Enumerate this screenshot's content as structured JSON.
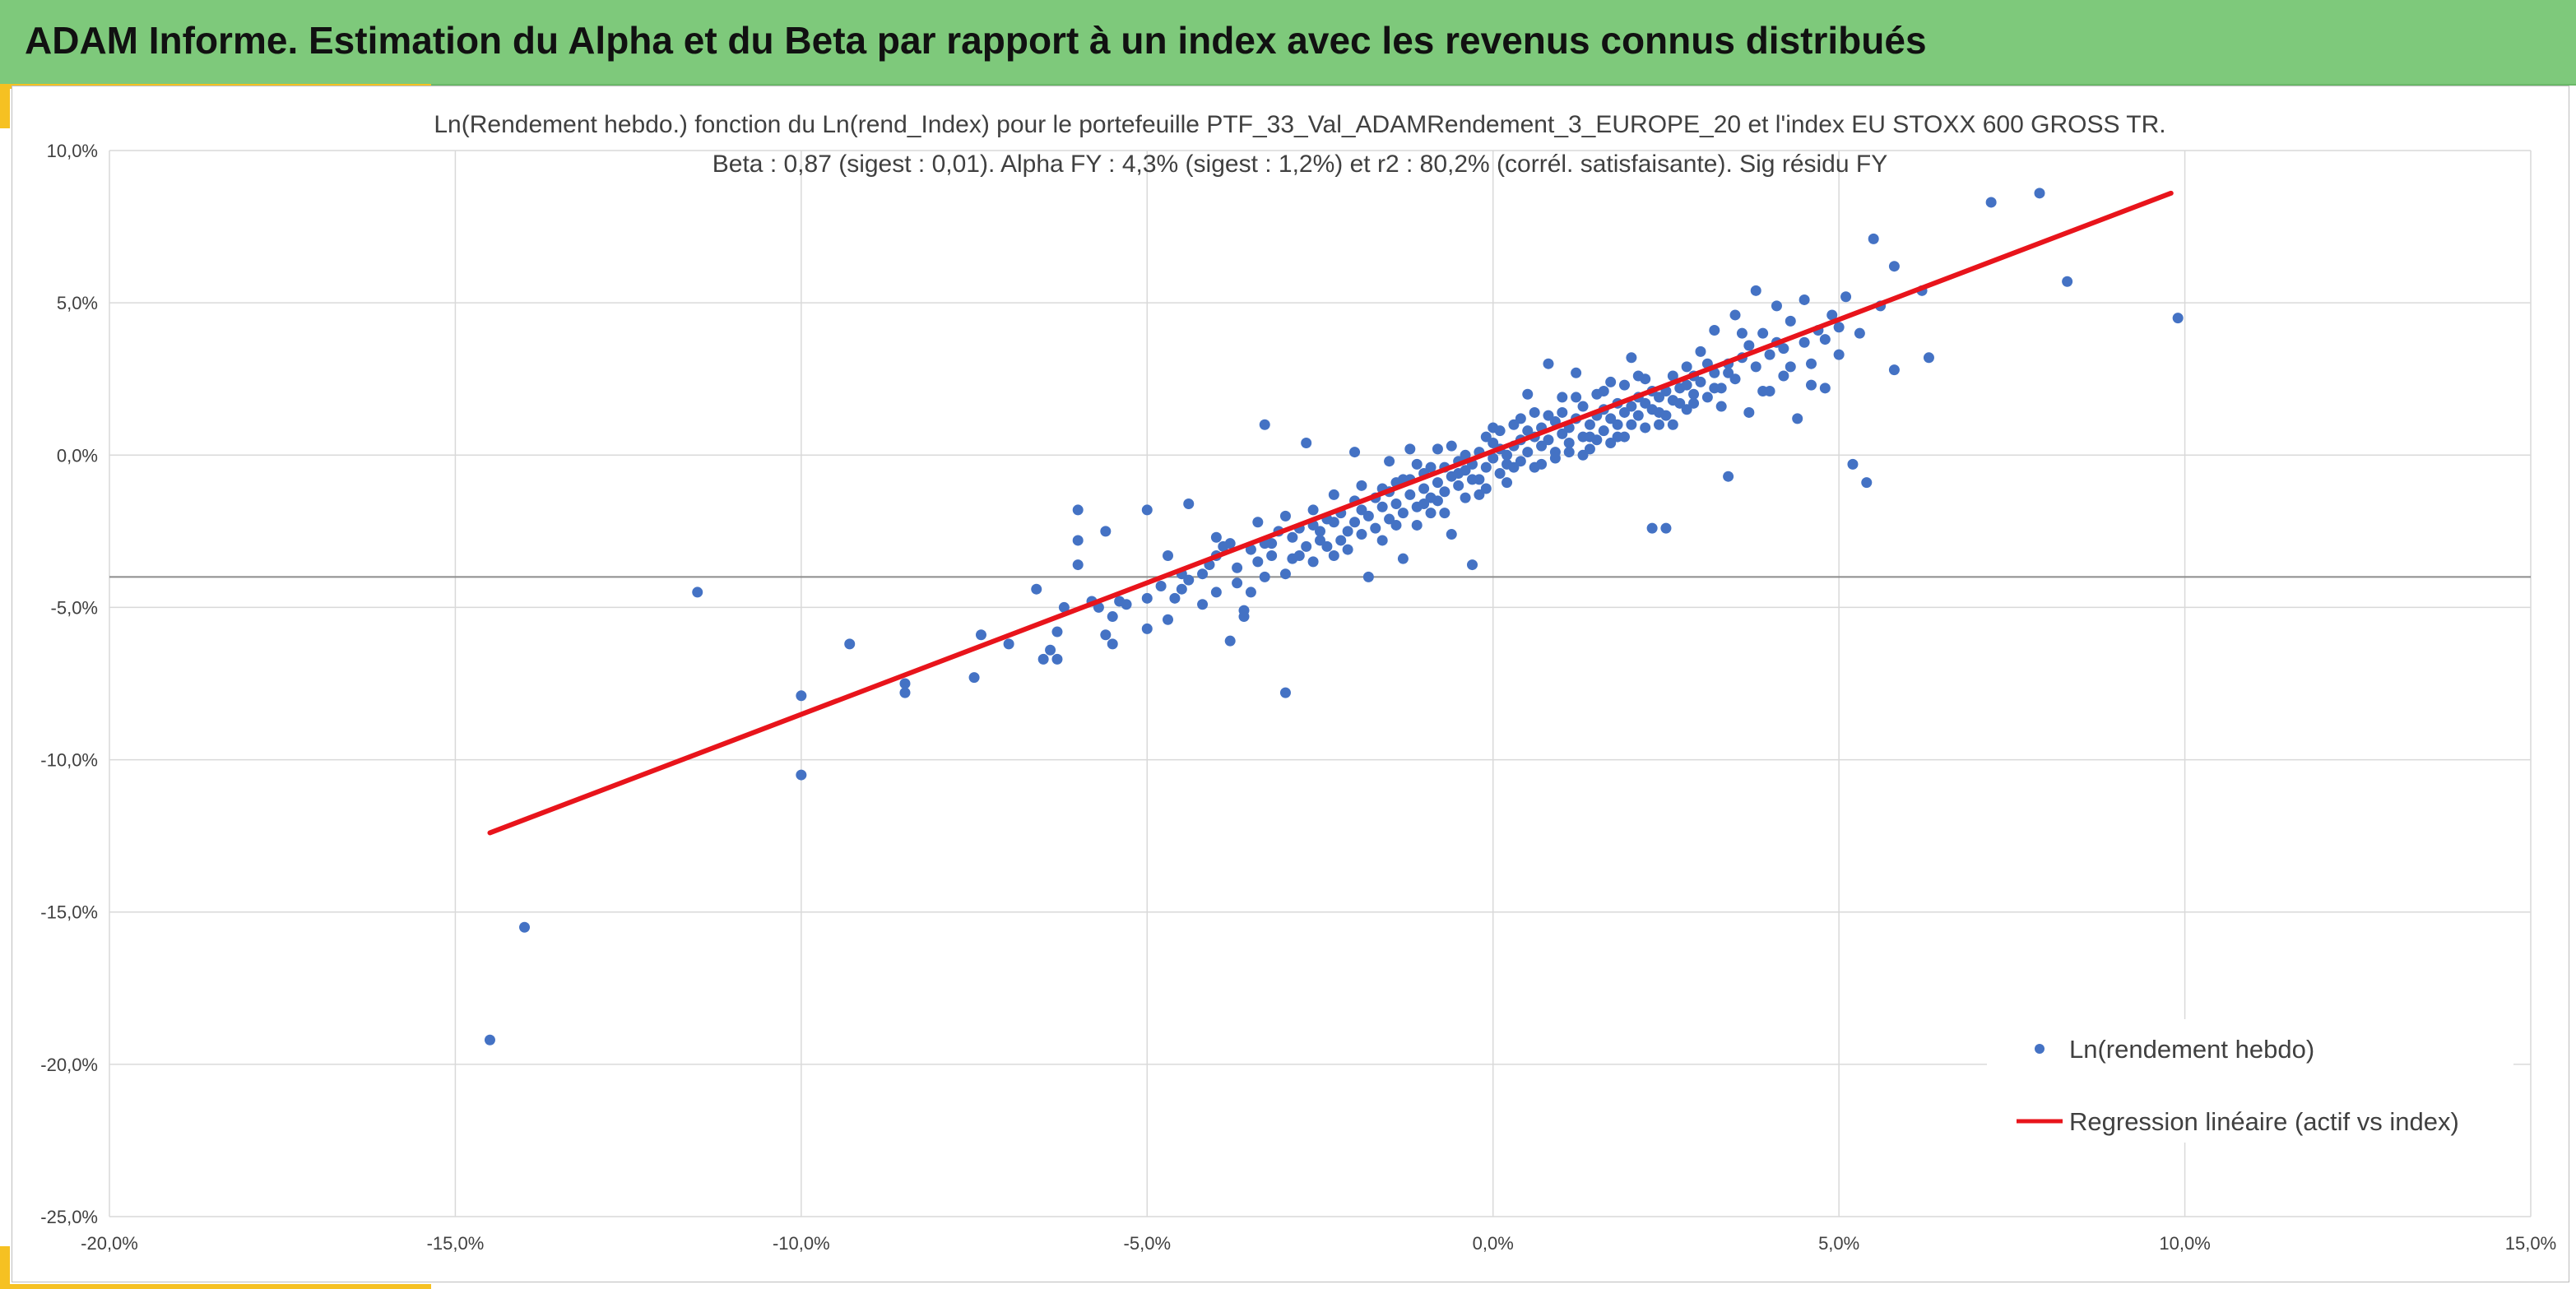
{
  "header": {
    "title": "ADAM Informe. Estimation du Alpha et du Beta par rapport à un index avec les revenus connus distribués"
  },
  "colors": {
    "header_bg": "#7ec97b",
    "accent": "#f6c122",
    "points": "#4472c4",
    "regression": "#e8141b",
    "grid": "#d9d9d9"
  },
  "chart_data": {
    "type": "scatter",
    "title": "Ln(Rendement hebdo.) fonction du Ln(rend_Index) pour le portefeuille PTF_33_Val_ADAMRendement_3_EUROPE_20 et l'index EU STOXX 600 GROSS TR.",
    "subtitle": "Beta : 0,87 (sigest : 0,01). Alpha FY : 4,3% (sigest : 1,2%) et r2 : 80,2% (corrél. satisfaisante). Sig résidu FY",
    "xlabel": "",
    "ylabel": "",
    "xlim": [
      -0.2,
      0.15
    ],
    "ylim": [
      -0.25,
      0.1
    ],
    "x_ticks": [
      -0.2,
      -0.15,
      -0.1,
      -0.05,
      0.0,
      0.05,
      0.1,
      0.15
    ],
    "x_tick_labels": [
      "-20,0%",
      "-15,0%",
      "-10,0%",
      "-5,0%",
      "0,0%",
      "5,0%",
      "10,0%",
      "15,0%"
    ],
    "y_ticks": [
      0.1,
      0.05,
      0.0,
      -0.05,
      -0.1,
      -0.15,
      -0.2,
      -0.25
    ],
    "y_tick_labels": [
      "10,0%",
      "5,0%",
      "0,0%",
      "-5,0%",
      "-10,0%",
      "-15,0%",
      "-20,0%",
      "-25,0%"
    ],
    "grid": true,
    "reference_hline": -0.04,
    "legend": {
      "position": "bottom-right",
      "items": [
        "Ln(rendement hebdo)",
        "Regression linéaire (actif vs index)"
      ]
    },
    "series": [
      {
        "name": "Ln(rendement hebdo)",
        "kind": "scatter",
        "points": [
          [
            -0.145,
            -0.192
          ],
          [
            -0.14,
            -0.155
          ],
          [
            -0.115,
            -0.045
          ],
          [
            -0.1,
            -0.079
          ],
          [
            -0.1,
            -0.105
          ],
          [
            -0.093,
            -0.062
          ],
          [
            -0.085,
            -0.075
          ],
          [
            -0.085,
            -0.078
          ],
          [
            -0.075,
            -0.073
          ],
          [
            -0.074,
            -0.059
          ],
          [
            -0.07,
            -0.062
          ],
          [
            -0.066,
            -0.044
          ],
          [
            -0.065,
            -0.067
          ],
          [
            -0.064,
            -0.064
          ],
          [
            -0.063,
            -0.067
          ],
          [
            -0.063,
            -0.058
          ],
          [
            -0.062,
            -0.05
          ],
          [
            -0.06,
            -0.018
          ],
          [
            -0.06,
            -0.028
          ],
          [
            -0.06,
            -0.036
          ],
          [
            -0.058,
            -0.048
          ],
          [
            -0.057,
            -0.05
          ],
          [
            -0.056,
            -0.059
          ],
          [
            -0.056,
            -0.025
          ],
          [
            -0.055,
            -0.062
          ],
          [
            -0.055,
            -0.053
          ],
          [
            -0.054,
            -0.048
          ],
          [
            -0.053,
            -0.049
          ],
          [
            -0.05,
            -0.047
          ],
          [
            -0.05,
            -0.018
          ],
          [
            -0.05,
            -0.057
          ],
          [
            -0.048,
            -0.043
          ],
          [
            -0.047,
            -0.054
          ],
          [
            -0.047,
            -0.033
          ],
          [
            -0.046,
            -0.047
          ],
          [
            -0.045,
            -0.039
          ],
          [
            -0.045,
            -0.044
          ],
          [
            -0.044,
            -0.016
          ],
          [
            -0.044,
            -0.041
          ],
          [
            -0.042,
            -0.049
          ],
          [
            -0.042,
            -0.039
          ],
          [
            -0.041,
            -0.036
          ],
          [
            -0.04,
            -0.033
          ],
          [
            -0.04,
            -0.045
          ],
          [
            -0.039,
            -0.03
          ],
          [
            -0.038,
            -0.061
          ],
          [
            -0.038,
            -0.029
          ],
          [
            -0.037,
            -0.042
          ],
          [
            -0.037,
            -0.037
          ],
          [
            -0.036,
            -0.051
          ],
          [
            -0.036,
            -0.053
          ],
          [
            -0.035,
            -0.031
          ],
          [
            -0.035,
            -0.045
          ],
          [
            -0.034,
            -0.035
          ],
          [
            -0.033,
            -0.029
          ],
          [
            -0.033,
            -0.04
          ],
          [
            -0.032,
            -0.029
          ],
          [
            -0.032,
            -0.033
          ],
          [
            -0.031,
            -0.025
          ],
          [
            -0.03,
            -0.039
          ],
          [
            -0.03,
            -0.078
          ],
          [
            -0.03,
            -0.02
          ],
          [
            -0.029,
            -0.027
          ],
          [
            -0.029,
            -0.034
          ],
          [
            -0.028,
            -0.033
          ],
          [
            -0.028,
            -0.024
          ],
          [
            -0.027,
            -0.03
          ],
          [
            -0.026,
            -0.018
          ],
          [
            -0.026,
            -0.035
          ],
          [
            -0.025,
            -0.028
          ],
          [
            -0.025,
            -0.025
          ],
          [
            -0.024,
            -0.021
          ],
          [
            -0.024,
            -0.03
          ],
          [
            -0.023,
            -0.022
          ],
          [
            -0.023,
            -0.033
          ],
          [
            -0.022,
            -0.028
          ],
          [
            -0.022,
            -0.019
          ],
          [
            -0.021,
            -0.025
          ],
          [
            -0.021,
            -0.031
          ],
          [
            -0.02,
            -0.015
          ],
          [
            -0.02,
            -0.022
          ],
          [
            -0.019,
            -0.026
          ],
          [
            -0.019,
            -0.018
          ],
          [
            -0.018,
            -0.02
          ],
          [
            -0.018,
            -0.04
          ],
          [
            -0.017,
            -0.024
          ],
          [
            -0.017,
            -0.014
          ],
          [
            -0.016,
            -0.017
          ],
          [
            -0.016,
            -0.028
          ],
          [
            -0.015,
            -0.012
          ],
          [
            -0.015,
            -0.021
          ],
          [
            -0.014,
            -0.016
          ],
          [
            -0.014,
            -0.009
          ],
          [
            -0.013,
            -0.019
          ],
          [
            -0.013,
            -0.034
          ],
          [
            -0.012,
            -0.013
          ],
          [
            -0.012,
            -0.008
          ],
          [
            -0.011,
            -0.017
          ],
          [
            -0.011,
            -0.023
          ],
          [
            -0.01,
            -0.011
          ],
          [
            -0.01,
            -0.006
          ],
          [
            -0.009,
            -0.014
          ],
          [
            -0.009,
            -0.019
          ],
          [
            -0.008,
            -0.009
          ],
          [
            -0.008,
            0.002
          ],
          [
            -0.007,
            -0.012
          ],
          [
            -0.007,
            -0.004
          ],
          [
            -0.006,
            -0.007
          ],
          [
            -0.006,
            -0.026
          ],
          [
            -0.005,
            -0.01
          ],
          [
            -0.005,
            -0.002
          ],
          [
            -0.004,
            -0.005
          ],
          [
            -0.004,
            -0.014
          ],
          [
            -0.003,
            -0.003
          ],
          [
            -0.003,
            -0.036
          ],
          [
            -0.002,
            -0.008
          ],
          [
            -0.002,
            0.001
          ],
          [
            -0.001,
            -0.004
          ],
          [
            -0.001,
            -0.011
          ],
          [
            0.0,
            -0.001
          ],
          [
            0.0,
            0.004
          ],
          [
            0.001,
            -0.006
          ],
          [
            0.001,
            0.002
          ],
          [
            0.002,
            0.0
          ],
          [
            0.002,
            -0.009
          ],
          [
            0.003,
            0.003
          ],
          [
            0.003,
            0.01
          ],
          [
            0.004,
            -0.002
          ],
          [
            0.004,
            0.005
          ],
          [
            0.005,
            0.001
          ],
          [
            0.005,
            0.02
          ],
          [
            0.006,
            0.006
          ],
          [
            0.006,
            -0.004
          ],
          [
            0.007,
            0.003
          ],
          [
            0.007,
            0.009
          ],
          [
            0.008,
            0.005
          ],
          [
            0.008,
            0.03
          ],
          [
            0.009,
            0.001
          ],
          [
            0.009,
            0.011
          ],
          [
            0.01,
            0.007
          ],
          [
            0.01,
            0.014
          ],
          [
            0.011,
            0.004
          ],
          [
            0.011,
            0.009
          ],
          [
            0.012,
            0.012
          ],
          [
            0.012,
            0.027
          ],
          [
            0.013,
            0.006
          ],
          [
            0.013,
            0.016
          ],
          [
            0.014,
            0.01
          ],
          [
            0.014,
            0.002
          ],
          [
            0.015,
            0.013
          ],
          [
            0.015,
            0.02
          ],
          [
            0.016,
            0.008
          ],
          [
            0.016,
            0.015
          ],
          [
            0.017,
            0.012
          ],
          [
            0.017,
            0.024
          ],
          [
            0.018,
            0.01
          ],
          [
            0.018,
            0.017
          ],
          [
            0.019,
            0.014
          ],
          [
            0.019,
            0.006
          ],
          [
            0.02,
            0.016
          ],
          [
            0.02,
            0.032
          ],
          [
            0.021,
            0.013
          ],
          [
            0.021,
            0.019
          ],
          [
            0.022,
            0.017
          ],
          [
            0.022,
            0.025
          ],
          [
            0.023,
            0.015
          ],
          [
            0.023,
            -0.024
          ],
          [
            0.024,
            0.019
          ],
          [
            0.024,
            0.01
          ],
          [
            0.025,
            0.021
          ],
          [
            0.025,
            -0.024
          ],
          [
            0.026,
            0.018
          ],
          [
            0.026,
            0.026
          ],
          [
            0.027,
            0.022
          ],
          [
            0.028,
            0.015
          ],
          [
            0.028,
            0.029
          ],
          [
            0.029,
            0.02
          ],
          [
            0.03,
            0.024
          ],
          [
            0.03,
            0.034
          ],
          [
            0.031,
            0.019
          ],
          [
            0.032,
            0.027
          ],
          [
            0.032,
            0.041
          ],
          [
            0.033,
            0.022
          ],
          [
            0.034,
            0.03
          ],
          [
            0.034,
            -0.007
          ],
          [
            0.035,
            0.025
          ],
          [
            0.035,
            0.046
          ],
          [
            0.036,
            0.032
          ],
          [
            0.037,
            0.014
          ],
          [
            0.037,
            0.036
          ],
          [
            0.038,
            0.029
          ],
          [
            0.038,
            0.054
          ],
          [
            0.039,
            0.04
          ],
          [
            0.04,
            0.021
          ],
          [
            0.04,
            0.033
          ],
          [
            0.041,
            0.049
          ],
          [
            0.042,
            0.026
          ],
          [
            0.042,
            0.035
          ],
          [
            0.043,
            0.044
          ],
          [
            0.044,
            0.012
          ],
          [
            0.045,
            0.037
          ],
          [
            0.045,
            0.051
          ],
          [
            0.046,
            0.03
          ],
          [
            0.047,
            0.041
          ],
          [
            0.048,
            0.022
          ],
          [
            0.049,
            0.046
          ],
          [
            0.05,
            0.033
          ],
          [
            0.05,
            0.042
          ],
          [
            0.051,
            0.052
          ],
          [
            0.052,
            -0.003
          ],
          [
            0.053,
            0.04
          ],
          [
            0.054,
            -0.009
          ],
          [
            0.055,
            0.071
          ],
          [
            0.056,
            0.049
          ],
          [
            0.058,
            0.028
          ],
          [
            0.058,
            0.062
          ],
          [
            0.062,
            0.054
          ],
          [
            0.063,
            0.032
          ],
          [
            0.072,
            0.083
          ],
          [
            0.079,
            0.086
          ],
          [
            0.083,
            0.057
          ],
          [
            0.099,
            0.045
          ],
          [
            -0.033,
            0.01
          ],
          [
            -0.027,
            0.004
          ],
          [
            -0.02,
            0.001
          ],
          [
            -0.015,
            -0.002
          ],
          [
            -0.012,
            0.002
          ],
          [
            -0.009,
            -0.004
          ],
          [
            -0.006,
            0.003
          ],
          [
            -0.004,
            0.0
          ],
          [
            0.0,
            0.009
          ],
          [
            0.003,
            -0.004
          ],
          [
            0.006,
            0.014
          ],
          [
            0.009,
            -0.001
          ],
          [
            0.012,
            0.019
          ],
          [
            0.014,
            0.006
          ],
          [
            0.017,
            0.004
          ],
          [
            0.019,
            0.023
          ],
          [
            0.022,
            0.009
          ],
          [
            0.025,
            0.013
          ],
          [
            0.028,
            0.023
          ],
          [
            0.031,
            0.03
          ],
          [
            0.033,
            0.016
          ],
          [
            0.036,
            0.04
          ],
          [
            0.039,
            0.021
          ],
          [
            0.041,
            0.037
          ],
          [
            0.043,
            0.029
          ],
          [
            0.046,
            0.023
          ],
          [
            0.048,
            0.038
          ],
          [
            -0.04,
            -0.027
          ],
          [
            -0.034,
            -0.022
          ],
          [
            -0.026,
            -0.023
          ],
          [
            -0.023,
            -0.013
          ],
          [
            -0.019,
            -0.01
          ],
          [
            -0.014,
            -0.023
          ],
          [
            -0.01,
            -0.016
          ],
          [
            -0.007,
            -0.019
          ],
          [
            -0.003,
            -0.008
          ],
          [
            0.001,
            0.008
          ],
          [
            0.004,
            0.012
          ],
          [
            0.007,
            -0.003
          ],
          [
            0.01,
            0.019
          ],
          [
            0.013,
            0.0
          ],
          [
            0.016,
            0.021
          ],
          [
            0.018,
            0.006
          ],
          [
            0.021,
            0.026
          ],
          [
            0.024,
            0.014
          ],
          [
            0.027,
            0.017
          ],
          [
            0.029,
            0.026
          ],
          [
            -0.001,
            0.006
          ],
          [
            0.002,
            -0.003
          ],
          [
            0.005,
            0.008
          ],
          [
            0.008,
            0.013
          ],
          [
            0.011,
            0.001
          ],
          [
            0.015,
            0.005
          ],
          [
            -0.002,
            -0.013
          ],
          [
            -0.005,
            -0.006
          ],
          [
            -0.008,
            -0.015
          ],
          [
            -0.011,
            -0.003
          ],
          [
            -0.013,
            -0.008
          ],
          [
            -0.016,
            -0.011
          ],
          [
            0.02,
            0.01
          ],
          [
            0.023,
            0.021
          ],
          [
            0.026,
            0.01
          ],
          [
            0.029,
            0.017
          ],
          [
            0.032,
            0.022
          ],
          [
            0.034,
            0.027
          ]
        ]
      },
      {
        "name": "Regression linéaire (actif vs index)",
        "kind": "line",
        "points": [
          [
            -0.145,
            -0.124
          ],
          [
            0.098,
            0.086
          ]
        ]
      }
    ]
  }
}
